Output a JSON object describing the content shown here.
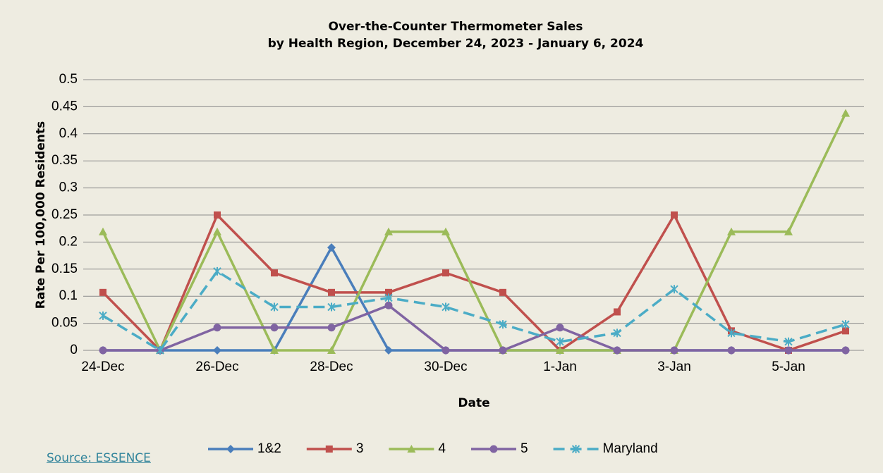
{
  "chart_data": {
    "type": "line",
    "title": "Over-the-Counter Thermometer Sales",
    "subtitle": "by Health Region, December 24, 2023 - January 6, 2024",
    "x_label": "Date",
    "y_label": "Rate Per 100,000 Residents",
    "categories": [
      "24-Dec",
      null,
      "26-Dec",
      null,
      "28-Dec",
      null,
      "30-Dec",
      null,
      "1-Jan",
      null,
      "3-Jan",
      null,
      "5-Jan",
      null
    ],
    "series": [
      {
        "name": "1&2",
        "color": "#4a7ebb",
        "marker": "diamond",
        "values": [
          0,
          0,
          0,
          0,
          0.19,
          0,
          0,
          0,
          0,
          0,
          0,
          0,
          0,
          0
        ]
      },
      {
        "name": "3",
        "color": "#c0504d",
        "marker": "square",
        "values": [
          0.107,
          0,
          0.25,
          0.143,
          0.107,
          0.107,
          0.143,
          0.107,
          0,
          0.071,
          0.25,
          0.036,
          0,
          0.036
        ]
      },
      {
        "name": "4",
        "color": "#9bbb59",
        "marker": "triangle",
        "values": [
          0.219,
          0,
          0.219,
          0,
          0,
          0.219,
          0.219,
          0,
          0,
          0,
          0,
          0.219,
          0.219,
          0.438
        ]
      },
      {
        "name": "5",
        "color": "#8064a2",
        "marker": "circle",
        "values": [
          0,
          0,
          0.042,
          0.042,
          0.042,
          0.083,
          0,
          0,
          0.042,
          0,
          0,
          0,
          0,
          0
        ]
      },
      {
        "name": "Maryland",
        "color": "#4bacc6",
        "marker": "star",
        "dashed": true,
        "values": [
          0.064,
          0,
          0.146,
          0.08,
          0.08,
          0.097,
          0.08,
          0.048,
          0.016,
          0.032,
          0.113,
          0.032,
          0.016,
          0.048
        ]
      }
    ],
    "ylim": [
      0,
      0.5
    ],
    "yticks": [
      0,
      0.05,
      0.1,
      0.15,
      0.2,
      0.25,
      0.3,
      0.35,
      0.4,
      0.45,
      0.5
    ],
    "grid": true,
    "legend": "bottom"
  },
  "source": "Source: ESSENCE"
}
